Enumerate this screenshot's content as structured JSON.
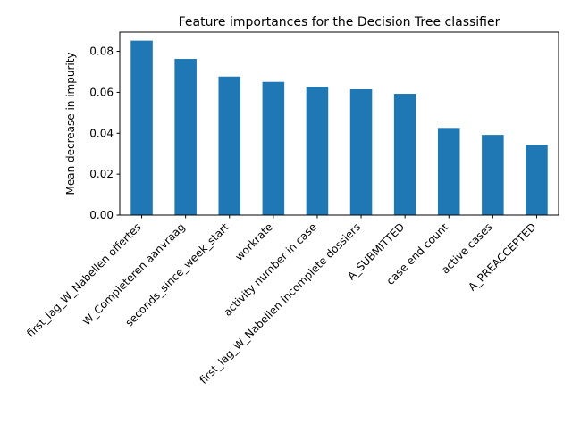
{
  "chart_data": {
    "type": "bar",
    "title": "Feature importances for the Decision Tree classifier",
    "xlabel": "",
    "ylabel": "Mean decrease in impurity",
    "categories": [
      "first_lag_W_Nabellen offertes",
      "W_Completeren aanvraag",
      "seconds_since_week_start",
      "workrate",
      "activity number in case",
      "first_lag_W_Nabellen incomplete dossiers",
      "A_SUBMITTED",
      "case end count",
      "active cases",
      "A_PREACCEPTED"
    ],
    "values": [
      0.0852,
      0.0763,
      0.0677,
      0.0651,
      0.0627,
      0.0615,
      0.0593,
      0.0426,
      0.0392,
      0.0343
    ],
    "ylim": [
      0,
      0.0894
    ],
    "yticks": [
      0.0,
      0.02,
      0.04,
      0.06,
      0.08
    ],
    "ytick_labels": [
      "0.00",
      "0.02",
      "0.04",
      "0.06",
      "0.08"
    ],
    "bar_color": "#1f77b4",
    "grid": false,
    "legend": "none"
  }
}
